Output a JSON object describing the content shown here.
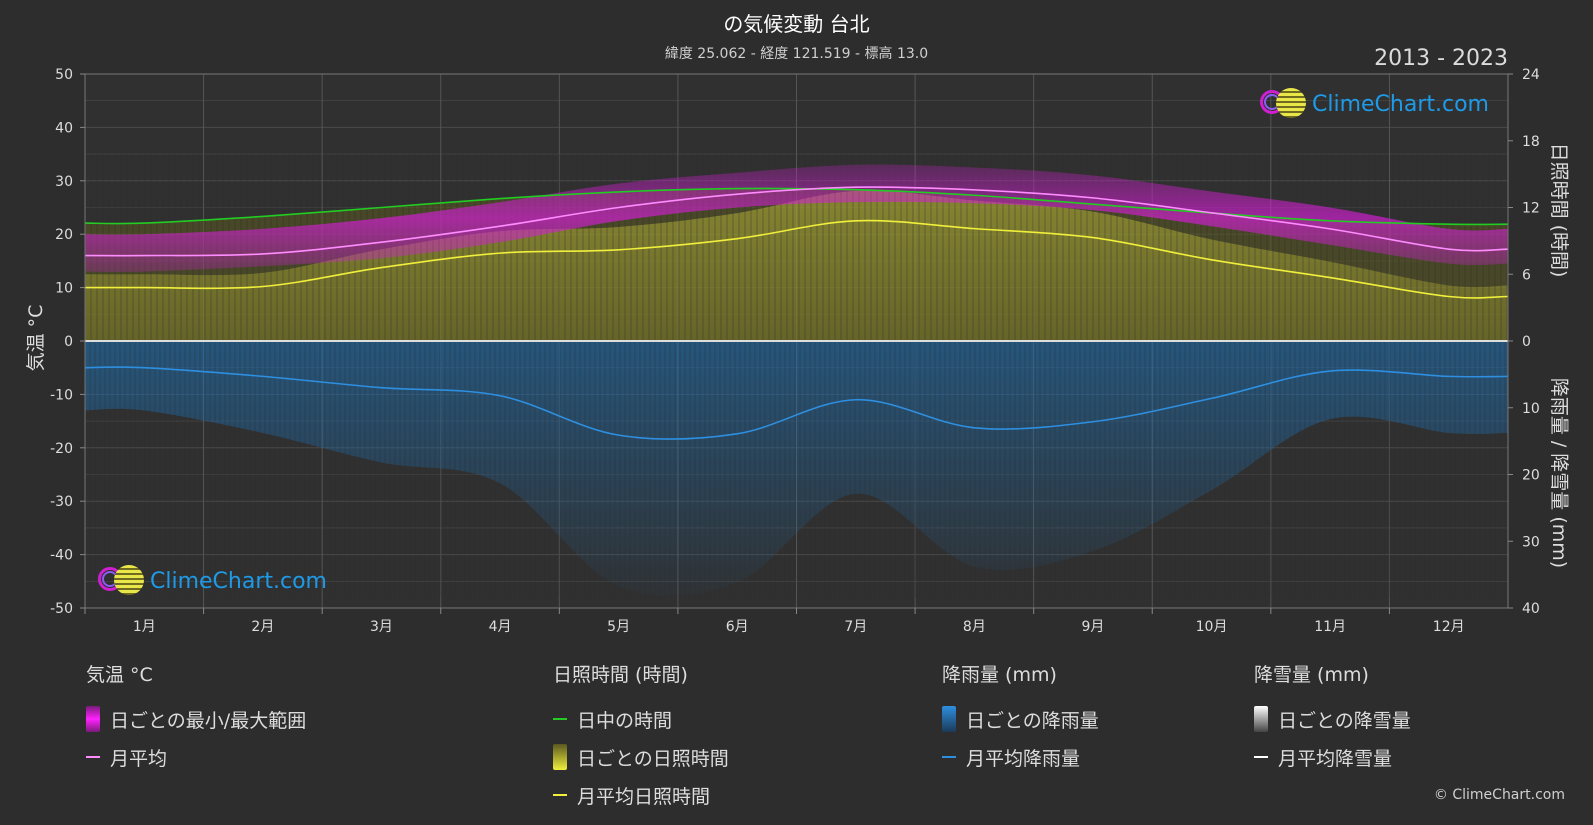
{
  "header": {
    "title": "の気候変動 台北",
    "subtitle": "緯度 25.062 - 経度 121.519 - 標高 13.0",
    "years": "2013 - 2023"
  },
  "logo_text": "ClimeChart.com",
  "copyright": "© ClimeChart.com",
  "colors": {
    "background": "#2d2d2d",
    "temp_range": "#d01fd0",
    "temp_avg": "#ff8cff",
    "daylight": "#22cc22",
    "sunshine": "#c8c63a",
    "sunshine_avg": "#f0ef3c",
    "rain": "#1e6fb0",
    "rain_avg": "#2e8fe0",
    "snow_avg": "#ffffff"
  },
  "chart_data": {
    "type": "line",
    "title": "の気候変動 台北",
    "categories": [
      "1月",
      "2月",
      "3月",
      "4月",
      "5月",
      "6月",
      "7月",
      "8月",
      "9月",
      "10月",
      "11月",
      "12月"
    ],
    "left_axis": {
      "label": "気温 °C",
      "ylim": [
        -50,
        50
      ],
      "ticks": [
        50,
        40,
        30,
        20,
        10,
        0,
        -10,
        -20,
        -30,
        -40,
        -50
      ]
    },
    "right_axis_top": {
      "label": "日照時間 (時間)",
      "ylim": [
        0,
        24
      ],
      "ticks": [
        24,
        18,
        12,
        6,
        0
      ]
    },
    "right_axis_bottom": {
      "label": "降雨量 / 降雪量 (mm)",
      "ylim": [
        0,
        40
      ],
      "ticks": [
        0,
        10,
        20,
        30,
        40
      ]
    },
    "grid": true,
    "series": [
      {
        "name": "月平均",
        "axis": "temperature",
        "values": [
          16,
          16.3,
          18.5,
          21.5,
          25,
          27.5,
          28.8,
          28.3,
          26.8,
          24,
          21,
          17.2
        ]
      },
      {
        "name": "日中の時間",
        "axis": "sunshine_hours",
        "values": [
          10.6,
          11.2,
          12.0,
          12.8,
          13.4,
          13.7,
          13.6,
          13.1,
          12.3,
          11.5,
          10.8,
          10.5
        ]
      },
      {
        "name": "月平均日照時間",
        "axis": "sunshine_hours",
        "values": [
          4.8,
          4.9,
          6.6,
          7.9,
          8.2,
          9.2,
          10.8,
          10.1,
          9.3,
          7.3,
          5.7,
          4.0
        ]
      },
      {
        "name": "月平均降雨量",
        "axis": "precipitation_mm",
        "values": [
          4.0,
          5.3,
          7.0,
          8.2,
          14.1,
          13.9,
          8.8,
          13.0,
          12.1,
          8.6,
          4.5,
          5.3
        ]
      },
      {
        "name": "月平均降雪量",
        "axis": "precipitation_mm",
        "values": [
          0,
          0,
          0,
          0,
          0,
          0,
          0,
          0,
          0,
          0,
          0,
          0
        ]
      }
    ],
    "temp_range_band": {
      "name": "日ごとの最小/最大範囲",
      "min": [
        13,
        14,
        15.5,
        18.5,
        22.5,
        25,
        26,
        25.8,
        24.5,
        21.5,
        18,
        14.5
      ],
      "max": [
        20,
        21,
        23,
        26,
        29.5,
        31.5,
        33,
        32.5,
        31,
        28,
        25,
        21
      ]
    }
  },
  "legend": {
    "temp": {
      "heading": "気温 °C",
      "range": "日ごとの最小/最大範囲",
      "avg": "月平均"
    },
    "sun": {
      "heading": "日照時間 (時間)",
      "daylight": "日中の時間",
      "daily": "日ごとの日照時間",
      "avg": "月平均日照時間"
    },
    "rain": {
      "heading": "降雨量 (mm)",
      "daily": "日ごとの降雨量",
      "avg": "月平均降雨量"
    },
    "snow": {
      "heading": "降雪量 (mm)",
      "daily": "日ごとの降雪量",
      "avg": "月平均降雪量"
    }
  }
}
